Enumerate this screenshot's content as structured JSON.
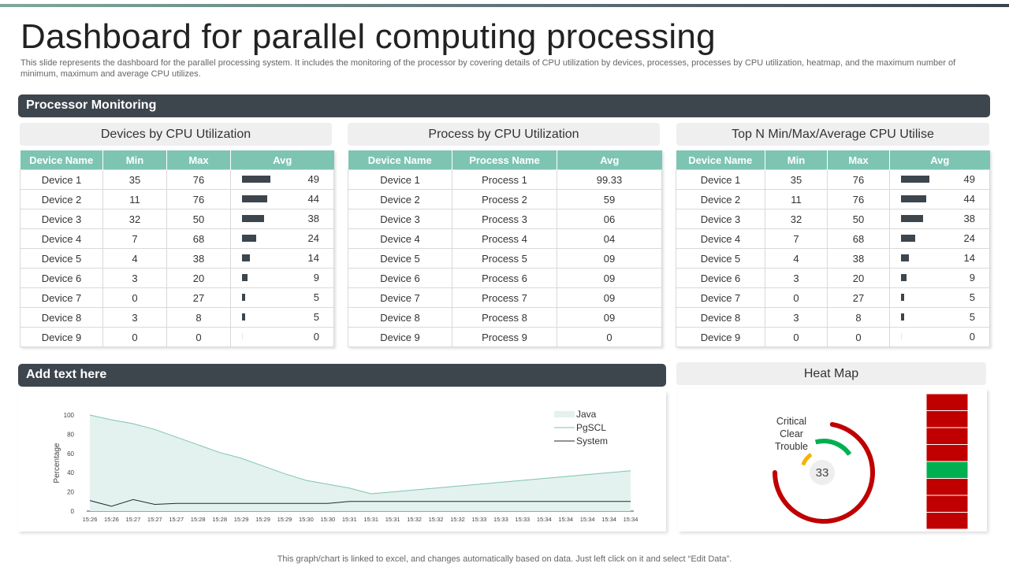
{
  "page": {
    "title": "Dashboard for parallel computing processing",
    "subtitle": "This slide represents the dashboard for the parallel processing system. It includes the monitoring of the processor by covering details of CPU utilization by devices, processes, processes by CPU utilization, heatmap, and the maximum number of minimum, maximum and average CPU utilizes.",
    "footer": "This graph/chart is linked to excel, and changes automatically based on data. Just left click on it and select “Edit Data”."
  },
  "sections": {
    "processor_monitoring": "Processor Monitoring",
    "add_text": "Add text here"
  },
  "colors": {
    "dark": "#3d454d",
    "teal": "#7ec4b3",
    "critical": "#c00000",
    "clear": "#00b050",
    "trouble": "#f0b400"
  },
  "devices_table": {
    "title": "Devices by CPU Utilization",
    "headers": [
      "Device Name",
      "Min",
      "Max",
      "Avg"
    ],
    "rows": [
      [
        "Device  1",
        "35",
        "76",
        "49"
      ],
      [
        "Device  2",
        "11",
        "76",
        "44"
      ],
      [
        "Device  3",
        "32",
        "50",
        "38"
      ],
      [
        "Device  4",
        "7",
        "68",
        "24"
      ],
      [
        "Device  5",
        "4",
        "38",
        "14"
      ],
      [
        "Device  6",
        "3",
        "20",
        "9"
      ],
      [
        "Device  7",
        "0",
        "27",
        "5"
      ],
      [
        "Device  8",
        "3",
        "8",
        "5"
      ],
      [
        "Device  9",
        "0",
        "0",
        "0"
      ]
    ]
  },
  "process_table": {
    "title": "Process by CPU Utilization",
    "headers": [
      "Device Name",
      "Process  Name",
      "Avg"
    ],
    "rows": [
      [
        "Device  1",
        "Process  1",
        "99.33"
      ],
      [
        "Device  2",
        "Process  2",
        "59"
      ],
      [
        "Device  3",
        "Process  3",
        "06"
      ],
      [
        "Device  4",
        "Process  4",
        "04"
      ],
      [
        "Device  5",
        "Process  5",
        "09"
      ],
      [
        "Device  6",
        "Process  6",
        "09"
      ],
      [
        "Device  7",
        "Process  7",
        "09"
      ],
      [
        "Device  8",
        "Process  8",
        "09"
      ],
      [
        "Device  9",
        "Process  9",
        "0"
      ]
    ]
  },
  "topn_table": {
    "title": "Top N Min/Max/Average  CPU Utilise",
    "headers": [
      "Device Name",
      "Min",
      "Max",
      "Avg"
    ],
    "rows": [
      [
        "Device  1",
        "35",
        "76",
        "49"
      ],
      [
        "Device  2",
        "11",
        "76",
        "44"
      ],
      [
        "Device  3",
        "32",
        "50",
        "38"
      ],
      [
        "Device  4",
        "7",
        "68",
        "24"
      ],
      [
        "Device  5",
        "4",
        "38",
        "14"
      ],
      [
        "Device  6",
        "3",
        "20",
        "9"
      ],
      [
        "Device  7",
        "0",
        "27",
        "5"
      ],
      [
        "Device  8",
        "3",
        "8",
        "5"
      ],
      [
        "Device  9",
        "0",
        "0",
        "0"
      ]
    ]
  },
  "chart_data": {
    "type": "area",
    "ylabel": "Percentage",
    "ylim": [
      0,
      100
    ],
    "yticks": [
      0,
      20,
      40,
      60,
      80,
      100
    ],
    "grid": false,
    "legend_position": "top-right",
    "categories": [
      "15:26",
      "15:26",
      "15:27",
      "15:27",
      "15:27",
      "15:28",
      "15:28",
      "15:29",
      "15:29",
      "15:29",
      "15:30",
      "15:30",
      "15:31",
      "15:31",
      "15:31",
      "15:32",
      "15:32",
      "15:32",
      "15:33",
      "15:33",
      "15:33",
      "15:34",
      "15:34",
      "15:34",
      "15:34",
      "15:34"
    ],
    "series": [
      {
        "name": "Java",
        "type": "area",
        "color": "#e3f2ee",
        "values": [
          100,
          95,
          91,
          85,
          77,
          69,
          61,
          55,
          47,
          39,
          32,
          28,
          24,
          18,
          20,
          22,
          24,
          26,
          28,
          30,
          32,
          34,
          36,
          38,
          40,
          42
        ]
      },
      {
        "name": "PgSCL",
        "type": "line",
        "color": "#7ec4b3",
        "values": [
          100,
          95,
          91,
          85,
          77,
          69,
          61,
          55,
          47,
          39,
          32,
          28,
          24,
          18,
          20,
          22,
          24,
          26,
          28,
          30,
          32,
          34,
          36,
          38,
          40,
          42
        ]
      },
      {
        "name": "System",
        "type": "line",
        "color": "#1f2a33",
        "values": [
          11,
          5,
          12,
          7,
          8,
          8,
          8,
          8,
          8,
          8,
          8,
          8,
          10,
          10,
          10,
          10,
          10,
          10,
          10,
          10,
          10,
          10,
          10,
          10,
          10,
          10
        ]
      }
    ]
  },
  "heat_map": {
    "title": "Heat Map",
    "legend": [
      "Critical",
      "Clear",
      "Trouble"
    ],
    "value": "33",
    "cells": [
      "critical",
      "critical",
      "critical",
      "critical",
      "clear",
      "critical",
      "critical",
      "critical"
    ]
  }
}
